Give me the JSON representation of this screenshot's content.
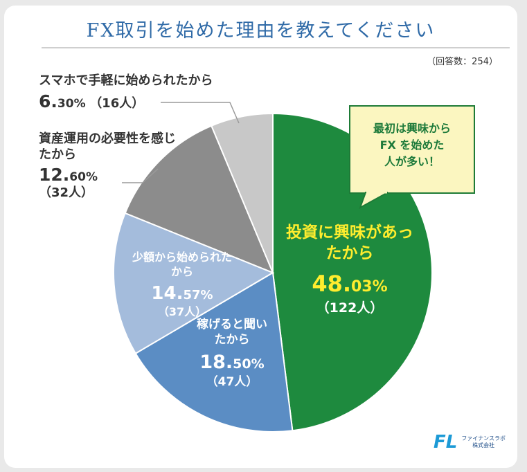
{
  "title": "FX取引を始めた理由を教えてください",
  "respondents_label": "（回答数：254）",
  "callout": {
    "lines": [
      "最初は興味から",
      "FX を始めた",
      "人が多い！"
    ]
  },
  "logo": {
    "name": "ファイナンスラボ",
    "sub": "株式会社"
  },
  "colors": {
    "green": "#1e8a3e",
    "blue": "#5b8dc4",
    "light_blue": "#a4bcdc",
    "dark_gray": "#8c8c8c",
    "light_gray": "#c8c8c8",
    "yellow_text": "#ffed2e"
  },
  "chart_data": {
    "type": "pie",
    "slices": [
      {
        "label": "投資に興味があったから",
        "percent": 48.03,
        "count": 122,
        "percent_text_main": "48.",
        "percent_text_rest": "03%",
        "count_text": "（122人）",
        "color": "#1e8a3e"
      },
      {
        "label": "稼げると聞いたから",
        "percent": 18.5,
        "count": 47,
        "percent_text_main": "18.",
        "percent_text_rest": "50%",
        "count_text": "（47人）",
        "color": "#5b8dc4"
      },
      {
        "label": "少額から始められたから",
        "percent": 14.57,
        "count": 37,
        "percent_text_main": "14.",
        "percent_text_rest": "57%",
        "count_text": "（37人）",
        "color": "#a4bcdc"
      },
      {
        "label": "資産運用の必要性を感じたから",
        "percent": 12.6,
        "count": 32,
        "percent_text_main": "12.",
        "percent_text_rest": "60%",
        "count_text": "（32人）",
        "color": "#8c8c8c"
      },
      {
        "label": "スマホで手軽に始められたから",
        "percent": 6.3,
        "count": 16,
        "percent_text_main": "6.",
        "percent_text_rest": "30%",
        "count_text": "（16人）",
        "color": "#c8c8c8"
      }
    ]
  }
}
